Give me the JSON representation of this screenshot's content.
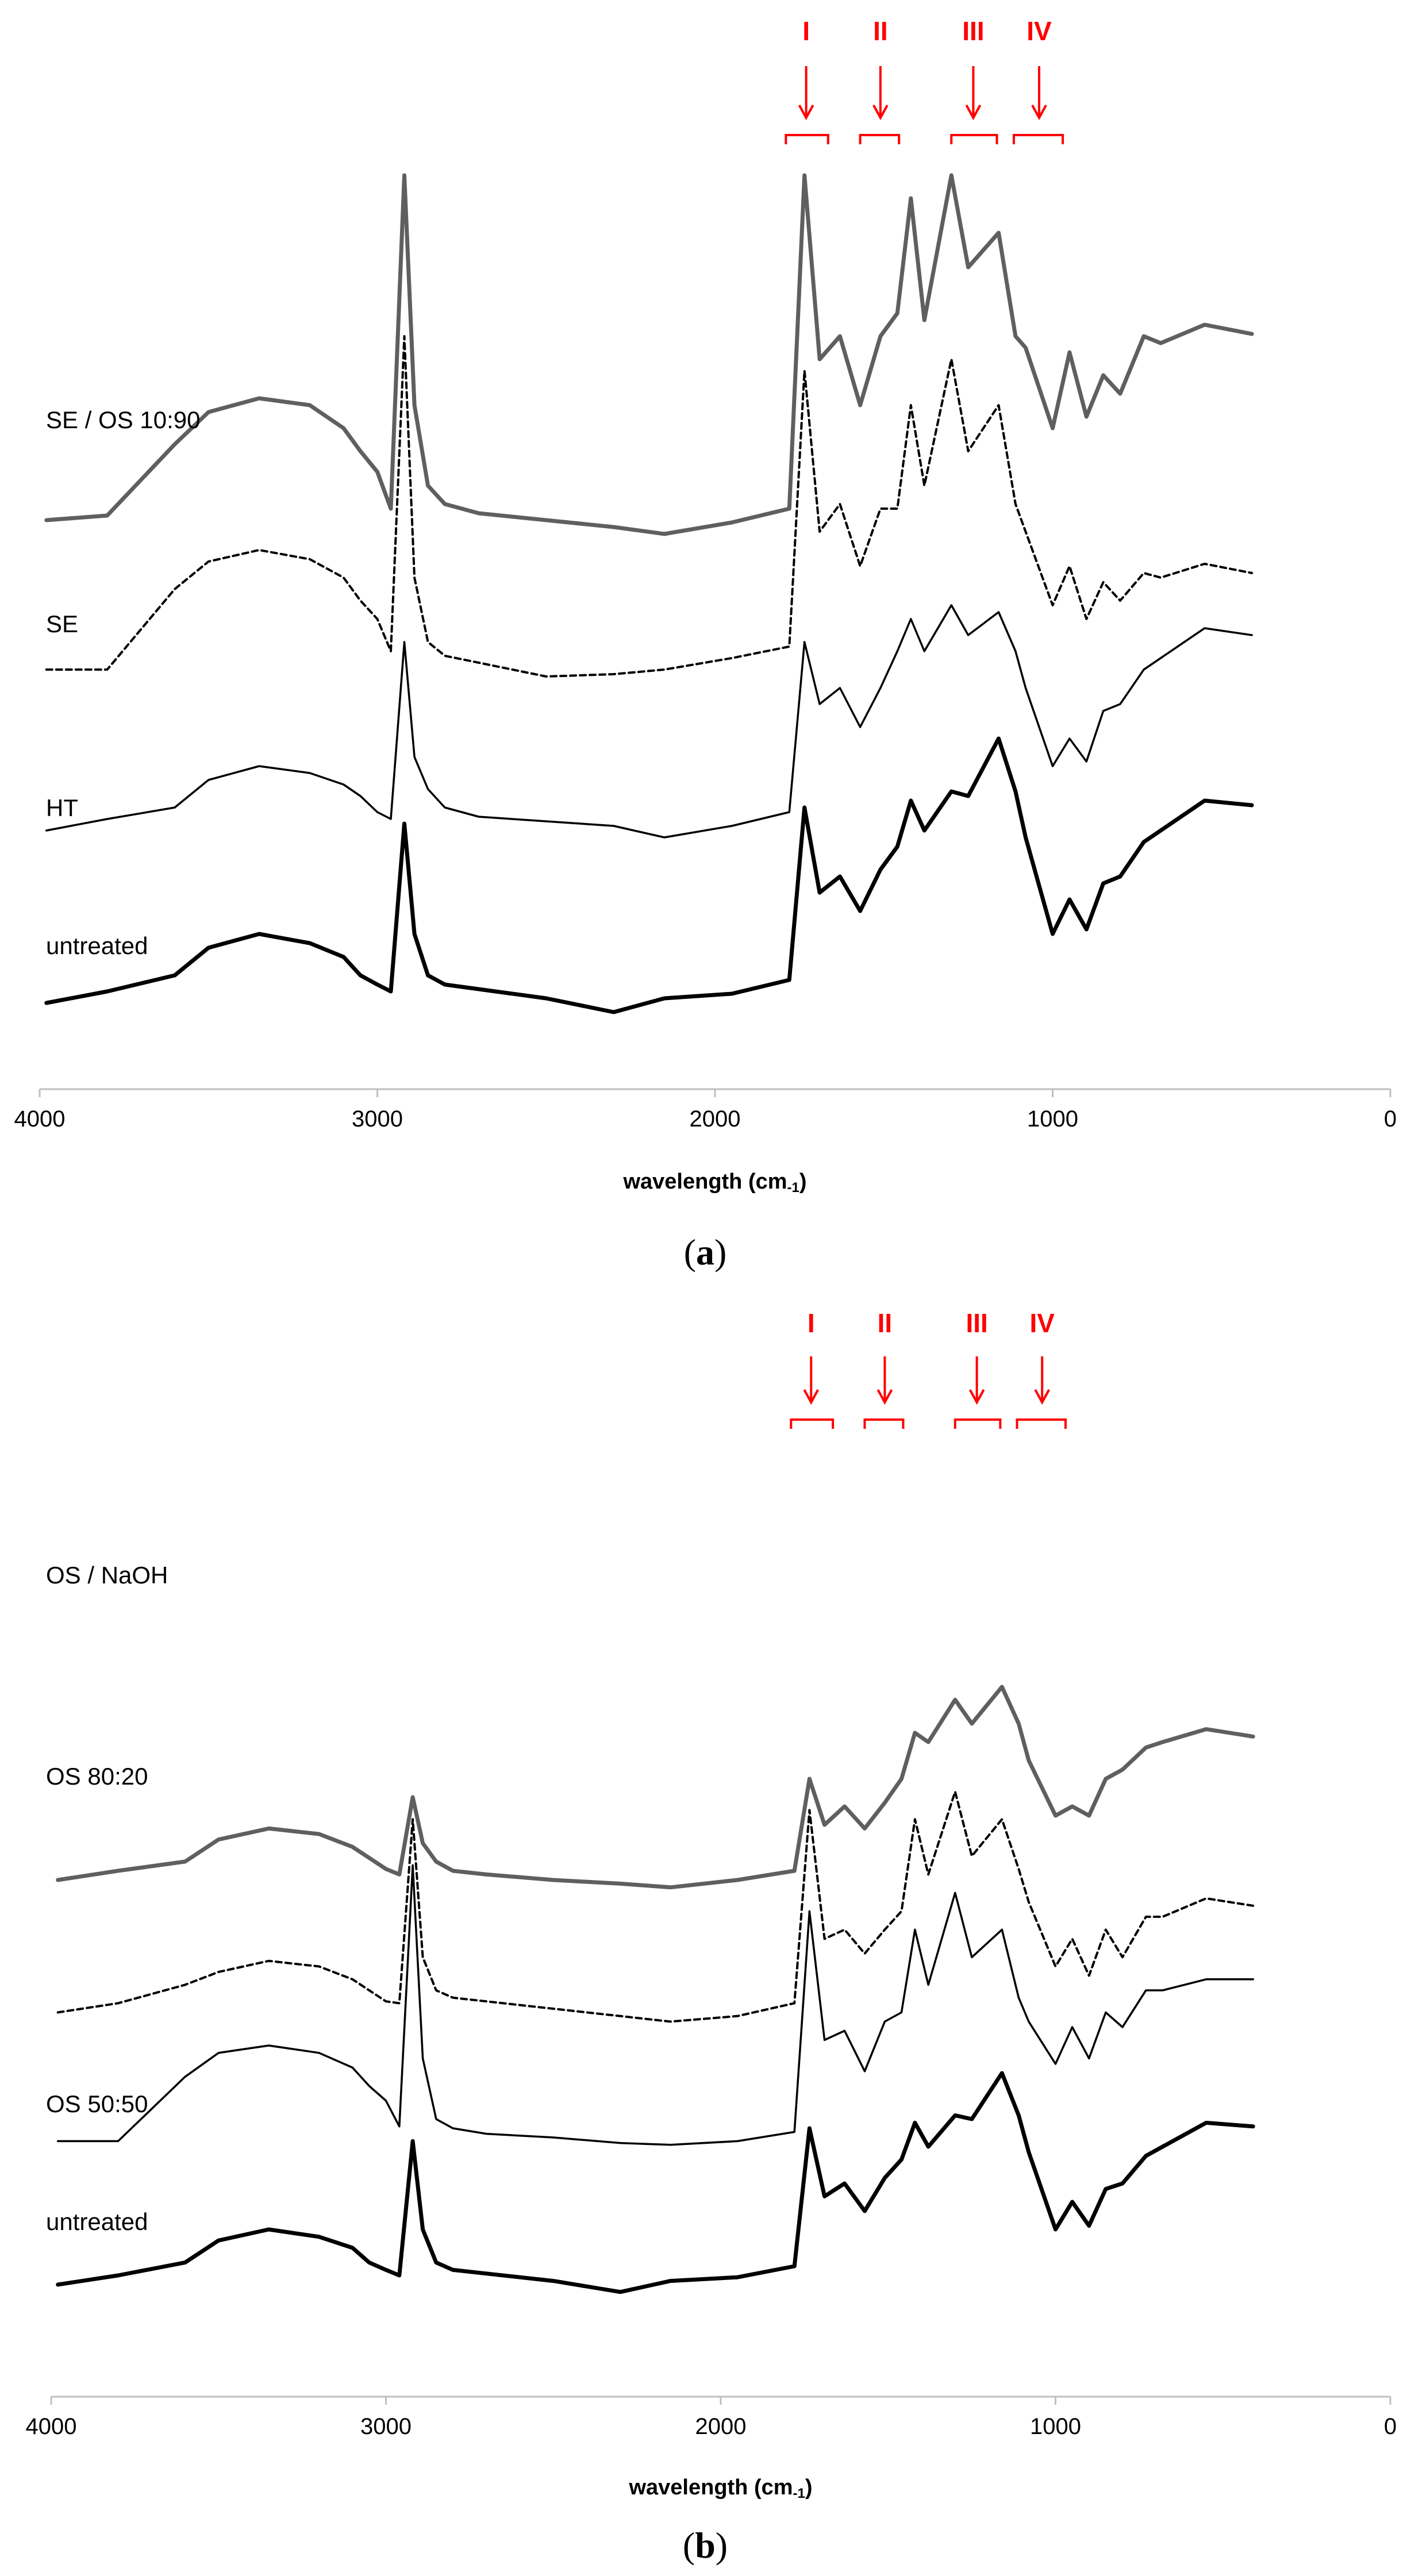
{
  "colors": {
    "annotation": "#ff0000",
    "axis": "#bfbfbf",
    "gray_line": "#5f5f5f",
    "black_line": "#000000"
  },
  "chart_data": [
    {
      "panel": "a",
      "caption_letter": "a",
      "type": "line",
      "xlabel_main": "wavelength (cm",
      "xlabel_sup": "-1",
      "xlabel_close": ")",
      "xlim": [
        4000,
        0
      ],
      "x_ticks": [
        "4000",
        "3000",
        "2000",
        "1000",
        "0"
      ],
      "x_tick_values": [
        4000,
        3000,
        2000,
        1000,
        0
      ],
      "regions": [
        {
          "label": "I",
          "x_center": 1730,
          "x_from": 1790,
          "x_to": 1665
        },
        {
          "label": "II",
          "x_center": 1510,
          "x_from": 1570,
          "x_to": 1455
        },
        {
          "label": "III",
          "x_center": 1235,
          "x_from": 1300,
          "x_to": 1165
        },
        {
          "label": "IV",
          "x_center": 1040,
          "x_from": 1115,
          "x_to": 970
        }
      ],
      "series": [
        {
          "name": "SE / OS 10:90",
          "style": "gray",
          "offset": 2.05,
          "y": [
            0.05,
            0.07,
            0.38,
            0.52,
            0.58,
            0.55,
            0.45,
            0.35,
            0.26,
            0.1,
            1.55,
            0.55,
            0.2,
            0.12,
            0.08,
            0.05,
            0.02,
            -0.01,
            0.04,
            0.1,
            1.55,
            0.75,
            0.85,
            0.55,
            0.85,
            0.95,
            1.45,
            0.92,
            1.55,
            1.15,
            1.3,
            0.85,
            0.8,
            0.45,
            0.78,
            0.5,
            0.68,
            0.6,
            0.85,
            0.82,
            0.9,
            0.86
          ]
        },
        {
          "name": "SE",
          "style": "dashed",
          "offset": 1.45,
          "y": [
            0.0,
            0.0,
            0.35,
            0.47,
            0.52,
            0.48,
            0.4,
            0.3,
            0.22,
            0.08,
            1.45,
            0.4,
            0.12,
            0.06,
            0.03,
            -0.03,
            -0.02,
            0.0,
            0.05,
            0.1,
            1.3,
            0.6,
            0.72,
            0.45,
            0.7,
            0.7,
            1.15,
            0.8,
            1.35,
            0.95,
            1.15,
            0.72,
            0.6,
            0.28,
            0.45,
            0.22,
            0.38,
            0.3,
            0.42,
            0.4,
            0.46,
            0.42
          ]
        },
        {
          "name": "HT",
          "style": "thin",
          "offset": 0.75,
          "y": [
            0.0,
            0.05,
            0.1,
            0.22,
            0.28,
            0.25,
            0.2,
            0.15,
            0.08,
            0.05,
            0.82,
            0.32,
            0.18,
            0.1,
            0.06,
            0.04,
            0.02,
            -0.03,
            0.02,
            0.08,
            0.82,
            0.55,
            0.62,
            0.45,
            0.62,
            0.78,
            0.92,
            0.78,
            0.98,
            0.85,
            0.95,
            0.78,
            0.62,
            0.28,
            0.4,
            0.3,
            0.52,
            0.55,
            0.7,
            0.75,
            0.88,
            0.85
          ]
        },
        {
          "name": "untreated",
          "style": "thick",
          "offset": 0.0,
          "y": [
            0.0,
            0.05,
            0.12,
            0.24,
            0.3,
            0.26,
            0.2,
            0.12,
            0.08,
            0.05,
            0.78,
            0.3,
            0.12,
            0.08,
            0.06,
            0.02,
            -0.04,
            0.02,
            0.04,
            0.1,
            0.85,
            0.48,
            0.55,
            0.4,
            0.58,
            0.68,
            0.88,
            0.75,
            0.92,
            0.9,
            1.15,
            0.92,
            0.72,
            0.3,
            0.45,
            0.32,
            0.52,
            0.55,
            0.7,
            0.75,
            0.88,
            0.86
          ]
        }
      ]
    },
    {
      "panel": "b",
      "caption_letter": "b",
      "type": "line",
      "xlabel_main": "wavelength (cm",
      "xlabel_sup": "-1",
      "xlabel_close": ")",
      "xlim": [
        4000,
        0
      ],
      "x_ticks": [
        "4000",
        "3000",
        "2000",
        "1000",
        "0"
      ],
      "x_tick_values": [
        4000,
        3000,
        2000,
        1000,
        0
      ],
      "regions": [
        {
          "label": "I",
          "x_center": 1730,
          "x_from": 1790,
          "x_to": 1665
        },
        {
          "label": "II",
          "x_center": 1510,
          "x_from": 1570,
          "x_to": 1455
        },
        {
          "label": "III",
          "x_center": 1235,
          "x_from": 1300,
          "x_to": 1165
        },
        {
          "label": "IV",
          "x_center": 1040,
          "x_from": 1115,
          "x_to": 970
        }
      ],
      "series": [
        {
          "name": "OS / NaOH",
          "style": "gray",
          "offset": 2.2,
          "y": [
            0.0,
            0.05,
            0.1,
            0.22,
            0.28,
            0.25,
            0.18,
            0.12,
            0.06,
            0.03,
            0.45,
            0.2,
            0.1,
            0.05,
            0.03,
            0.0,
            -0.02,
            -0.04,
            0.0,
            0.05,
            0.55,
            0.3,
            0.4,
            0.28,
            0.42,
            0.55,
            0.8,
            0.75,
            0.98,
            0.85,
            1.05,
            0.85,
            0.65,
            0.35,
            0.4,
            0.35,
            0.55,
            0.6,
            0.72,
            0.75,
            0.82,
            0.78
          ]
        },
        {
          "name": "OS 80:20",
          "style": "dashed",
          "offset": 1.48,
          "y": [
            0.0,
            0.05,
            0.15,
            0.22,
            0.28,
            0.25,
            0.18,
            0.12,
            0.06,
            0.05,
            1.05,
            0.3,
            0.12,
            0.08,
            0.06,
            0.02,
            -0.02,
            -0.05,
            -0.02,
            0.05,
            1.1,
            0.4,
            0.45,
            0.32,
            0.45,
            0.55,
            1.05,
            0.75,
            1.2,
            0.85,
            1.05,
            0.78,
            0.6,
            0.25,
            0.4,
            0.2,
            0.45,
            0.3,
            0.52,
            0.52,
            0.62,
            0.58
          ]
        },
        {
          "name": "OS 50:50",
          "style": "thin",
          "offset": 0.78,
          "y": [
            0.0,
            0.0,
            0.35,
            0.48,
            0.52,
            0.48,
            0.4,
            0.3,
            0.22,
            0.08,
            1.5,
            0.45,
            0.12,
            0.07,
            0.04,
            0.02,
            -0.01,
            -0.02,
            0.0,
            0.05,
            1.25,
            0.55,
            0.6,
            0.38,
            0.65,
            0.7,
            1.15,
            0.85,
            1.35,
            1.0,
            1.15,
            0.78,
            0.65,
            0.42,
            0.62,
            0.45,
            0.7,
            0.62,
            0.82,
            0.82,
            0.88,
            0.88
          ]
        },
        {
          "name": "untreated",
          "style": "thick",
          "offset": 0.0,
          "y": [
            0.0,
            0.05,
            0.12,
            0.24,
            0.3,
            0.26,
            0.2,
            0.12,
            0.08,
            0.05,
            0.78,
            0.3,
            0.12,
            0.08,
            0.06,
            0.02,
            -0.04,
            0.02,
            0.04,
            0.1,
            0.85,
            0.48,
            0.55,
            0.4,
            0.58,
            0.68,
            0.88,
            0.75,
            0.92,
            0.9,
            1.15,
            0.92,
            0.72,
            0.3,
            0.45,
            0.32,
            0.52,
            0.55,
            0.7,
            0.75,
            0.88,
            0.86
          ]
        }
      ]
    }
  ],
  "x_samples": [
    3980,
    3800,
    3600,
    3500,
    3350,
    3200,
    3100,
    3050,
    3000,
    2960,
    2920,
    2890,
    2850,
    2800,
    2700,
    2500,
    2300,
    2150,
    1950,
    1780,
    1735,
    1690,
    1630,
    1570,
    1510,
    1460,
    1420,
    1380,
    1300,
    1250,
    1160,
    1110,
    1080,
    1000,
    950,
    900,
    850,
    800,
    730,
    680,
    550,
    410
  ]
}
